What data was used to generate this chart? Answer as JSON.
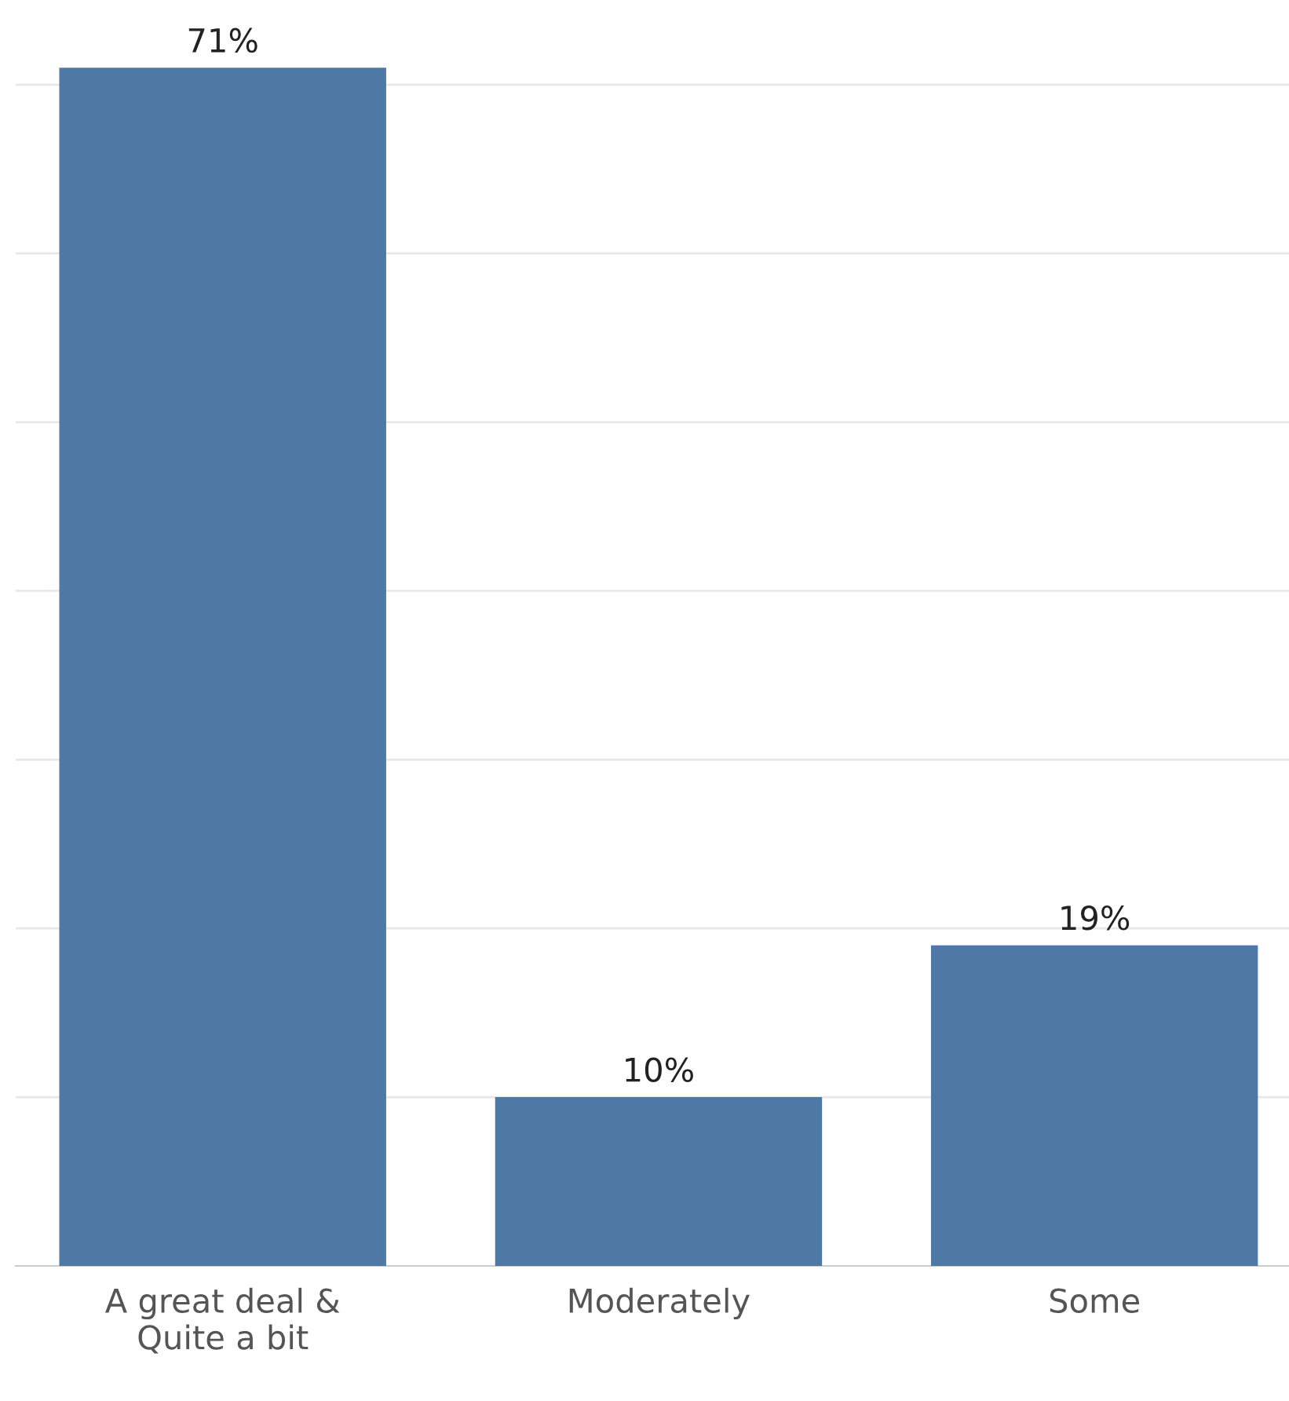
{
  "chart_data": {
    "type": "bar",
    "categories": [
      "A great deal &\nQuite a bit",
      "Moderately",
      "Some"
    ],
    "values": [
      71,
      10,
      19
    ],
    "value_labels": [
      "71%",
      "10%",
      "19%"
    ],
    "color": "#4e79a7",
    "yticks": [
      {
        "value": 10,
        "label": null
      },
      {
        "value": 20,
        "label": null
      },
      {
        "value": 30,
        "label": null
      },
      {
        "value": 40,
        "label": null
      },
      {
        "value": 50,
        "label": null
      },
      {
        "value": 60,
        "label": null
      },
      {
        "value": 70,
        "label": null
      }
    ],
    "grid": "y",
    "tick_labels": "x"
  }
}
